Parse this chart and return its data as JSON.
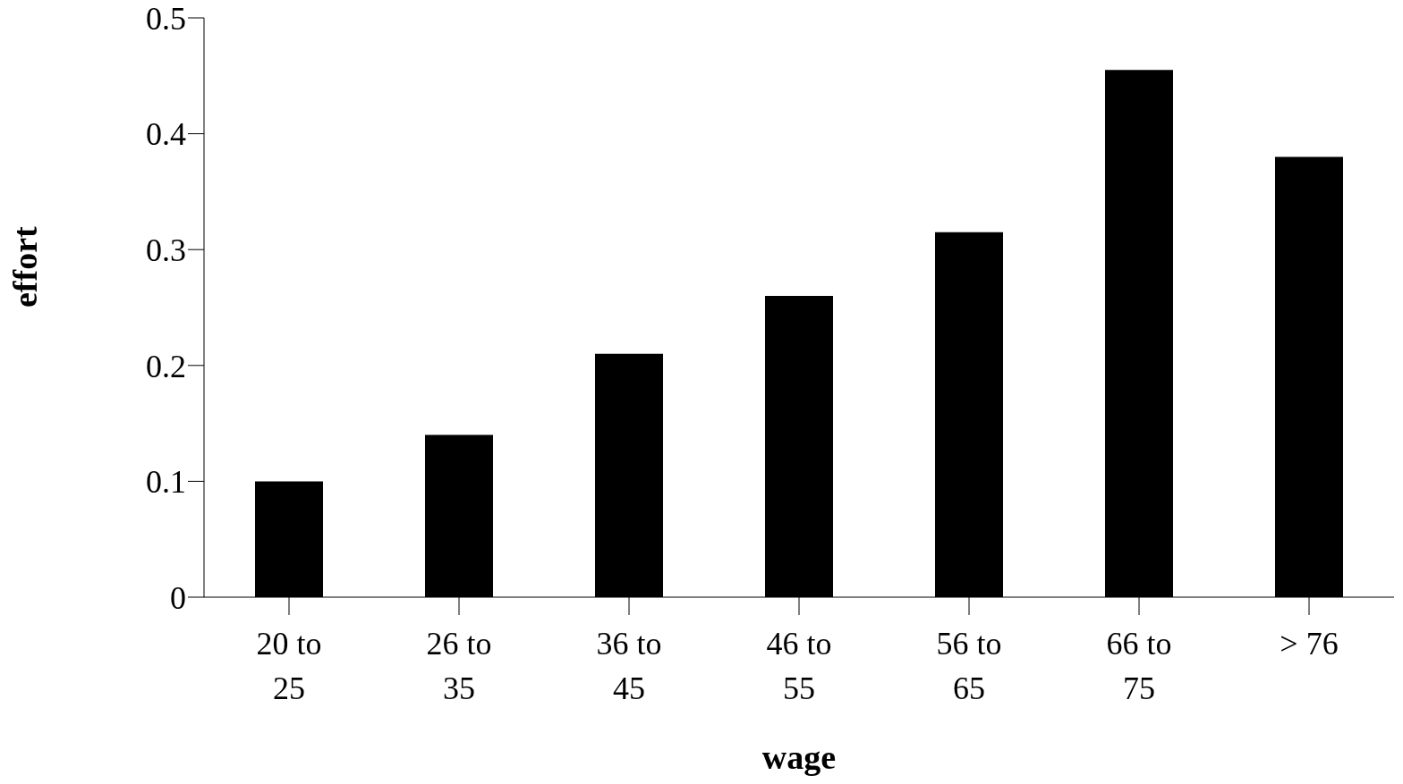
{
  "chart_data": {
    "type": "bar",
    "xlabel": "wage",
    "ylabel": "effort",
    "categories": [
      "20 to 25",
      "26 to 35",
      "36 to 45",
      "46 to 55",
      "56 to 65",
      "66 to 75",
      "> 76"
    ],
    "values": [
      0.1,
      0.14,
      0.21,
      0.26,
      0.315,
      0.455,
      0.38
    ],
    "color": "#000000",
    "ylim": [
      0,
      0.5
    ],
    "yticks": [
      0,
      0.1,
      0.2,
      0.3,
      0.4,
      0.5
    ]
  }
}
